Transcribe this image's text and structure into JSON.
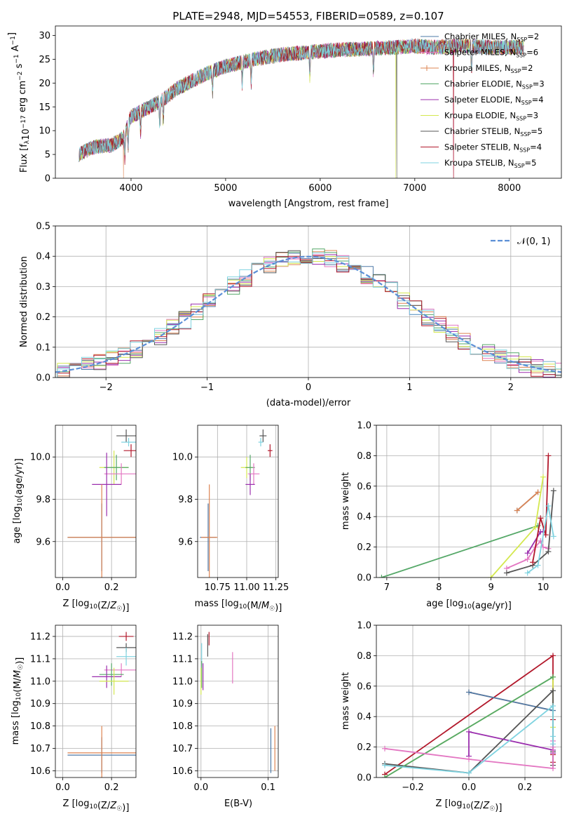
{
  "page_title": "PLATE=2948, MJD=54553, FIBERID=0589, z=0.107",
  "colors": {
    "Chabrier MILES": "#4e79a7",
    "Salpeter MILES": "#e377c2",
    "Kroupa MILES": "#dd8452",
    "Chabrier ELODIE": "#55a868",
    "Salpeter ELODIE": "#9b2fae",
    "Kroupa ELODIE": "#d4e84f",
    "Chabrier STELIB": "#555555",
    "Salpeter STELIB": "#b2182b",
    "Kroupa STELIB": "#7fd3e0",
    "normal_curve": "#5b8fd6"
  },
  "chart_data": [
    {
      "type": "line",
      "id": "spectrum",
      "title": "PLATE=2948, MJD=54553, FIBERID=0589, z=0.107",
      "xlabel": "wavelength [Angstrom, rest frame]",
      "ylabel": "Flux [f_λ10^-17 erg cm^-2 s^-1 A^-1]",
      "xlim": [
        3200,
        8550
      ],
      "ylim": [
        0,
        32
      ],
      "xticks": [
        4000,
        5000,
        6000,
        7000,
        8000
      ],
      "yticks": [
        0,
        5,
        10,
        15,
        20,
        25,
        30
      ],
      "grid": false,
      "legend_position": "top-right",
      "continuum": {
        "x": [
          3450,
          3600,
          3800,
          3920,
          4000,
          4300,
          4500,
          4800,
          5000,
          5300,
          5600,
          5900,
          6200,
          6500,
          6800,
          7000,
          7200,
          7500,
          7800,
          8150
        ],
        "y": [
          5,
          6.5,
          7,
          8.5,
          13,
          16,
          19,
          22,
          23.5,
          25,
          26,
          26.5,
          27,
          27.2,
          27.5,
          27.8,
          27.5,
          27.8,
          27.5,
          27.5
        ]
      },
      "series": [
        {
          "name": "Chabrier MILES, N_SSP=2",
          "label_main": "Chabrier MILES, N",
          "label_sub": "SSP",
          "label_tail": "=2",
          "marker": "none"
        },
        {
          "name": "Salpeter MILES, N_SSP=6",
          "label_main": "Salpeter MILES, N",
          "label_sub": "SSP",
          "label_tail": "=6",
          "marker": "+"
        },
        {
          "name": "Kroupa MILES, N_SSP=2",
          "label_main": "Kroupa MILES, N",
          "label_sub": "SSP",
          "label_tail": "=2",
          "marker": "+"
        },
        {
          "name": "Chabrier ELODIE, N_SSP=3",
          "label_main": "Chabrier ELODIE, N",
          "label_sub": "SSP",
          "label_tail": "=3",
          "marker": "none"
        },
        {
          "name": "Salpeter ELODIE, N_SSP=4",
          "label_main": "Salpeter ELODIE, N",
          "label_sub": "SSP",
          "label_tail": "=4",
          "marker": "none"
        },
        {
          "name": "Kroupa ELODIE, N_SSP=3",
          "label_main": "Kroupa ELODIE, N",
          "label_sub": "SSP",
          "label_tail": "=3",
          "marker": "none"
        },
        {
          "name": "Chabrier STELIB, N_SSP=5",
          "label_main": "Chabrier STELIB, N",
          "label_sub": "SSP",
          "label_tail": "=5",
          "marker": "none"
        },
        {
          "name": "Salpeter STELIB, N_SSP=4",
          "label_main": "Salpeter STELIB, N",
          "label_sub": "SSP",
          "label_tail": "=4",
          "marker": "none"
        },
        {
          "name": "Kroupa STELIB, N_SSP=5",
          "label_main": "Kroupa STELIB, N",
          "label_sub": "SSP",
          "label_tail": "=5",
          "marker": "none"
        }
      ]
    },
    {
      "type": "histogram",
      "id": "residuals",
      "xlabel": "(data-model)/error",
      "ylabel": "Normed distribution",
      "xlim": [
        -2.5,
        2.5
      ],
      "ylim": [
        0,
        0.5
      ],
      "xticks": [
        -2,
        -1,
        0,
        1,
        2
      ],
      "yticks": [
        0.0,
        0.1,
        0.2,
        0.3,
        0.4,
        0.5
      ],
      "grid": true,
      "bin_width": 0.12,
      "legend": "𝒩(0, 1)",
      "legend_position": "top-right",
      "reference_curve": "normal pdf, mean 0, sigma 1"
    },
    {
      "type": "scatter",
      "id": "age_vs_Z",
      "xlabel": "Z [log10(Z/Z☉)]",
      "ylabel": "age [log10(age/yr)]",
      "xlim": [
        -0.03,
        0.3
      ],
      "ylim": [
        9.43,
        10.15
      ],
      "xticks": [
        0.0,
        0.2
      ],
      "yticks": [
        9.6,
        9.8,
        10.0
      ],
      "grid": true,
      "points": [
        {
          "series": "Chabrier STELIB",
          "x": 0.26,
          "y": 10.1,
          "xerr": 0.04,
          "yerr": 0.03
        },
        {
          "series": "Salpeter STELIB",
          "x": 0.28,
          "y": 10.03,
          "xerr": 0.03,
          "yerr": 0.03
        },
        {
          "series": "Kroupa STELIB",
          "x": 0.27,
          "y": 10.07,
          "xerr": 0.03,
          "yerr": 0.02
        },
        {
          "series": "Kroupa ELODIE",
          "x": 0.21,
          "y": 9.95,
          "xerr": 0.06,
          "yerr": 0.08
        },
        {
          "series": "Chabrier ELODIE",
          "x": 0.22,
          "y": 9.95,
          "xerr": 0.05,
          "yerr": 0.06
        },
        {
          "series": "Salpeter MILES",
          "x": 0.24,
          "y": 9.92,
          "xerr": 0.07,
          "yerr": 0.05
        },
        {
          "series": "Salpeter ELODIE",
          "x": 0.18,
          "y": 9.87,
          "xerr": 0.06,
          "yerr": 0.15
        },
        {
          "series": "Chabrier MILES",
          "x": 0.16,
          "y": 9.62,
          "xerr": 0.14,
          "yerr": 0.16
        },
        {
          "series": "Kroupa MILES",
          "x": 0.16,
          "y": 9.62,
          "xerr": 0.14,
          "yerr": 0.25
        }
      ]
    },
    {
      "type": "scatter",
      "id": "age_vs_mass",
      "xlabel": "mass [log10(M/M☉)]",
      "xlim": [
        10.58,
        11.27
      ],
      "ylim": [
        9.43,
        10.15
      ],
      "xticks": [
        10.75,
        11.0,
        11.25
      ],
      "yticks": [
        9.6,
        9.8,
        10.0
      ],
      "grid": true,
      "points": [
        {
          "series": "Chabrier STELIB",
          "x": 11.14,
          "y": 10.1,
          "xerr": 0.03,
          "yerr": 0.03
        },
        {
          "series": "Salpeter STELIB",
          "x": 11.2,
          "y": 10.03,
          "xerr": 0.02,
          "yerr": 0.03
        },
        {
          "series": "Kroupa STELIB",
          "x": 11.12,
          "y": 10.07,
          "xerr": 0.02,
          "yerr": 0.02
        },
        {
          "series": "Kroupa ELODIE",
          "x": 11.0,
          "y": 9.95,
          "xerr": 0.05,
          "yerr": 0.05
        },
        {
          "series": "Chabrier ELODIE",
          "x": 11.03,
          "y": 9.95,
          "xerr": 0.04,
          "yerr": 0.06
        },
        {
          "series": "Salpeter MILES",
          "x": 11.06,
          "y": 9.92,
          "xerr": 0.05,
          "yerr": 0.05
        },
        {
          "series": "Salpeter ELODIE",
          "x": 11.03,
          "y": 9.87,
          "xerr": 0.04,
          "yerr": 0.05
        },
        {
          "series": "Chabrier MILES",
          "x": 10.67,
          "y": 9.62,
          "xerr": 0.07,
          "yerr": 0.16
        },
        {
          "series": "Kroupa MILES",
          "x": 10.68,
          "y": 9.62,
          "xerr": 0.07,
          "yerr": 0.25
        }
      ]
    },
    {
      "type": "line",
      "id": "weight_vs_age",
      "xlabel": "age [log10(age/yr)]",
      "ylabel": "mass weight",
      "xlim": [
        6.8,
        10.35
      ],
      "ylim": [
        0,
        1
      ],
      "xticks": [
        7,
        8,
        9,
        10
      ],
      "yticks": [
        0.0,
        0.2,
        0.4,
        0.6,
        0.8,
        1.0
      ],
      "grid": true,
      "series": [
        {
          "name": "Chabrier MILES",
          "x": [
            9.5,
            9.9
          ],
          "y": [
            0.44,
            0.56
          ]
        },
        {
          "name": "Kroupa MILES",
          "x": [
            9.5,
            9.9
          ],
          "y": [
            0.44,
            0.56
          ]
        },
        {
          "name": "Chabrier ELODIE",
          "x": [
            6.9,
            9.9
          ],
          "y": [
            0.0,
            0.34
          ]
        },
        {
          "name": "Kroupa ELODIE",
          "x": [
            9.0,
            9.85,
            10.0
          ],
          "y": [
            0.0,
            0.33,
            0.66
          ]
        },
        {
          "name": "Salpeter ELODIE",
          "x": [
            9.7,
            9.95,
            10.0
          ],
          "y": [
            0.16,
            0.3,
            0.3
          ]
        },
        {
          "name": "Salpeter MILES",
          "x": [
            9.3,
            9.7,
            9.85,
            9.95,
            10.0,
            10.1
          ],
          "y": [
            0.06,
            0.12,
            0.2,
            0.24,
            0.2,
            0.19
          ]
        },
        {
          "name": "Chabrier STELIB",
          "x": [
            9.3,
            9.8,
            10.1,
            10.2
          ],
          "y": [
            0.03,
            0.08,
            0.17,
            0.57
          ]
        },
        {
          "name": "Salpeter STELIB",
          "x": [
            9.8,
            9.95,
            10.05,
            10.1
          ],
          "y": [
            0.1,
            0.39,
            0.28,
            0.8
          ]
        },
        {
          "name": "Kroupa STELIB",
          "x": [
            9.7,
            9.9,
            10.1,
            10.2
          ],
          "y": [
            0.03,
            0.08,
            0.47,
            0.27
          ]
        }
      ]
    },
    {
      "type": "scatter",
      "id": "mass_vs_Z",
      "xlabel": "Z [log10(Z/Z☉)]",
      "ylabel": "mass [log10(M/M☉)]",
      "xlim": [
        -0.03,
        0.3
      ],
      "ylim": [
        10.57,
        11.25
      ],
      "xticks": [
        0.0,
        0.2
      ],
      "yticks": [
        10.6,
        10.7,
        10.8,
        10.9,
        11.0,
        11.1,
        11.2
      ],
      "grid": true,
      "points": [
        {
          "series": "Salpeter STELIB",
          "x": 0.26,
          "y": 11.2,
          "xerr": 0.03,
          "yerr": 0.02
        },
        {
          "series": "Chabrier STELIB",
          "x": 0.26,
          "y": 11.15,
          "xerr": 0.04,
          "yerr": 0.02
        },
        {
          "series": "Kroupa STELIB",
          "x": 0.26,
          "y": 11.11,
          "xerr": 0.04,
          "yerr": 0.04
        },
        {
          "series": "Salpeter MILES",
          "x": 0.24,
          "y": 11.05,
          "xerr": 0.07,
          "yerr": 0.03
        },
        {
          "series": "Chabrier ELODIE",
          "x": 0.2,
          "y": 11.03,
          "xerr": 0.05,
          "yerr": 0.05
        },
        {
          "series": "Salpeter ELODIE",
          "x": 0.18,
          "y": 11.02,
          "xerr": 0.06,
          "yerr": 0.05
        },
        {
          "series": "Kroupa ELODIE",
          "x": 0.21,
          "y": 11.0,
          "xerr": 0.06,
          "yerr": 0.06
        },
        {
          "series": "Chabrier MILES",
          "x": 0.16,
          "y": 10.67,
          "xerr": 0.14,
          "yerr": 0.08
        },
        {
          "series": "Kroupa MILES",
          "x": 0.16,
          "y": 10.68,
          "xerr": 0.14,
          "yerr": 0.12
        }
      ]
    },
    {
      "type": "scatter",
      "id": "mass_vs_ebv",
      "xlabel": "E(B-V)",
      "xlim": [
        -0.005,
        0.115
      ],
      "ylim": [
        10.57,
        11.25
      ],
      "xticks": [
        0.0,
        0.1
      ],
      "yticks": [
        10.6,
        10.7,
        10.8,
        10.9,
        11.0,
        11.1,
        11.2
      ],
      "grid": true,
      "points": [
        {
          "series": "Salpeter STELIB",
          "x": 0.012,
          "y": 11.19,
          "yerr": 0.03
        },
        {
          "series": "Chabrier STELIB",
          "x": 0.01,
          "y": 11.16,
          "yerr": 0.05
        },
        {
          "series": "Kroupa STELIB",
          "x": 0.001,
          "y": 11.12,
          "yerr": 0.05
        },
        {
          "series": "Salpeter MILES",
          "x": 0.047,
          "y": 11.06,
          "yerr": 0.07
        },
        {
          "series": "Chabrier ELODIE",
          "x": 0.001,
          "y": 11.03,
          "yerr": 0.06
        },
        {
          "series": "Salpeter ELODIE",
          "x": 0.003,
          "y": 11.02,
          "yerr": 0.06
        },
        {
          "series": "Kroupa ELODIE",
          "x": 0.0,
          "y": 11.0,
          "yerr": 0.06
        },
        {
          "series": "Chabrier MILES",
          "x": 0.104,
          "y": 10.69,
          "yerr": 0.1
        },
        {
          "series": "Kroupa MILES",
          "x": 0.11,
          "y": 10.7,
          "yerr": 0.1
        }
      ]
    },
    {
      "type": "line",
      "id": "weight_vs_Z",
      "xlabel": "Z [log10(Z/Z☉)]",
      "ylabel": "mass weight",
      "xlim": [
        -0.33,
        0.33
      ],
      "ylim": [
        0,
        1
      ],
      "xticks": [
        -0.2,
        0.0,
        0.2
      ],
      "yticks": [
        0.0,
        0.2,
        0.4,
        0.6,
        0.8,
        1.0
      ],
      "grid": true,
      "series": [
        {
          "name": "Salpeter STELIB",
          "x": [
            -0.3,
            0.3,
            0.3,
            0.3,
            0.3
          ],
          "y": [
            0.02,
            0.8,
            0.38,
            0.15,
            0.1
          ]
        },
        {
          "name": "Kroupa ELODIE",
          "x": [
            -0.3,
            0.3,
            0.3
          ],
          "y": [
            0.0,
            0.66,
            0.33
          ]
        },
        {
          "name": "Kroupa MILES",
          "x": [
            0.0,
            0.3
          ],
          "y": [
            0.56,
            0.44
          ]
        },
        {
          "name": "Chabrier MILES",
          "x": [
            0.0,
            0.3
          ],
          "y": [
            0.56,
            0.44
          ]
        },
        {
          "name": "Chabrier STELIB",
          "x": [
            -0.3,
            0.0,
            0.3,
            0.3,
            0.3
          ],
          "y": [
            0.09,
            0.03,
            0.57,
            0.17,
            0.08
          ]
        },
        {
          "name": "Chabrier ELODIE",
          "x": [
            -0.3,
            0.3
          ],
          "y": [
            0.0,
            0.66
          ]
        },
        {
          "name": "Salpeter ELODIE",
          "x": [
            0.0,
            0.0,
            0.3,
            0.3
          ],
          "y": [
            0.14,
            0.3,
            0.18,
            0.16
          ]
        },
        {
          "name": "Salpeter MILES",
          "x": [
            -0.3,
            0.0,
            0.3,
            0.3,
            0.3
          ],
          "y": [
            0.19,
            0.12,
            0.06,
            0.2,
            0.24
          ]
        },
        {
          "name": "Kroupa STELIB",
          "x": [
            -0.3,
            0.0,
            0.3,
            0.3,
            0.3
          ],
          "y": [
            0.08,
            0.03,
            0.47,
            0.27,
            0.22
          ]
        }
      ]
    }
  ]
}
